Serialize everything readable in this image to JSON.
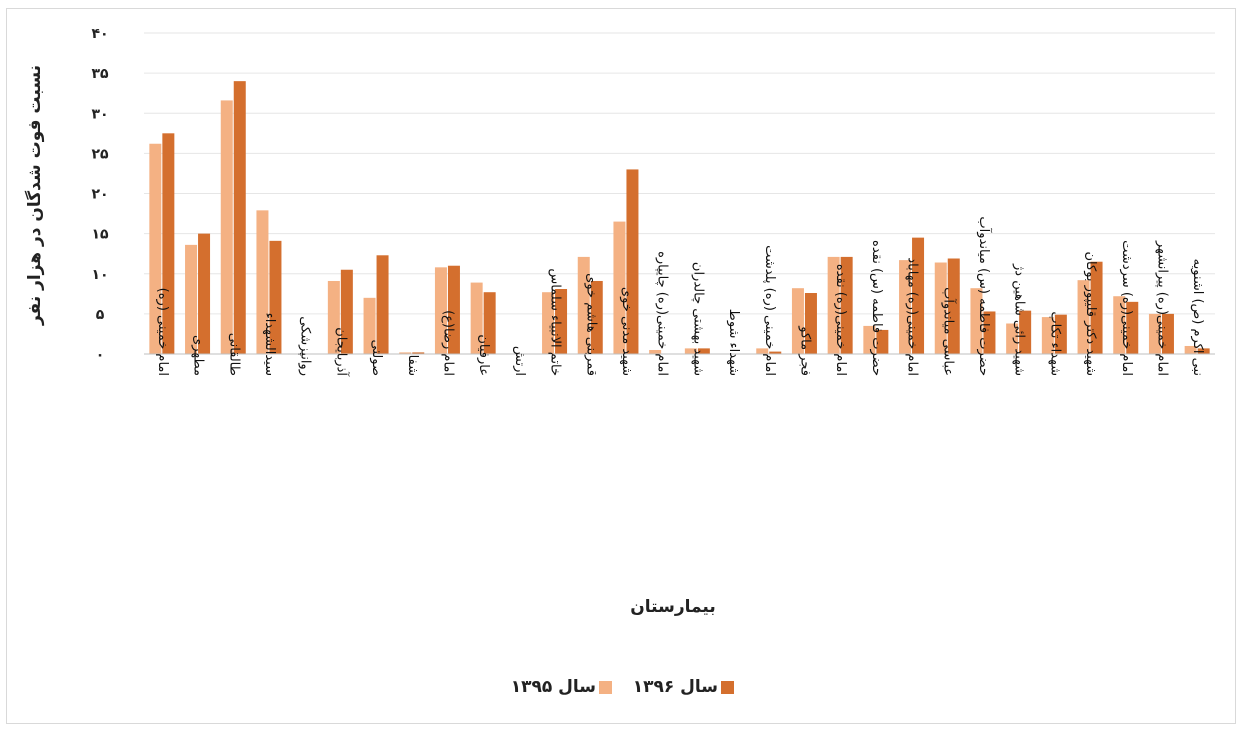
{
  "chart_data": {
    "type": "bar",
    "title": "",
    "xlabel": "بیمارستان",
    "ylabel": "نسبت فوت شدگان در هزار نفر",
    "ylim": [
      0,
      40
    ],
    "yticks": [
      0,
      5,
      10,
      15,
      20,
      25,
      30,
      35,
      40
    ],
    "ytick_labels": [
      "۰",
      "۵",
      "۱۰",
      "۱۵",
      "۲۰",
      "۲۵",
      "۳۰",
      "۳۵",
      "۴۰"
    ],
    "grid": true,
    "legend_position": "bottom",
    "categories": [
      "امام خمینی (ره)",
      "مطهری",
      "طالقانی",
      "سیدالشهداء",
      "روانپزشکی",
      "آذربایجان",
      "صولتی",
      "شفا",
      "امام رضا(ع)",
      "عارفیان",
      "ارتش",
      "خاتم الانبیاء سلماس",
      "قمربنی هاشم خوی",
      "شهید مدنی خوی",
      "امام خمینی(ره) چایپاره",
      "شهید بهشتی چالدران",
      "شهداء شوط",
      "امام خمینی (ره) پلدشت",
      "فجر ماکو",
      "امام خمینی(ره) نقده",
      "حضرت فاطمه (س) نقده",
      "امام خمینی(ره) مهاباد",
      "عباسی میاندوآب",
      "حضرت فاطمه (س) میاندوآب",
      "شهید رائی شاهین دژ",
      "شهداء تکاب",
      "شهید دکتر قلیپور بوکان",
      "امام خمینی(ره) سردشت",
      "امام خمینی(ره) پیرانشهر",
      "نبی اکرم (ص) اشنویه"
    ],
    "series": [
      {
        "name": "سال ۱۳۹۵",
        "color": "#F4B183",
        "values": [
          26.2,
          13.6,
          31.6,
          17.9,
          0,
          9.1,
          7.0,
          0.2,
          10.8,
          8.9,
          0,
          7.7,
          12.1,
          16.5,
          0.5,
          0.7,
          0,
          0.7,
          8.2,
          12.1,
          3.5,
          11.7,
          11.4,
          8.2,
          3.8,
          4.6,
          9.2,
          7.2,
          5.0,
          1.0
        ]
      },
      {
        "name": "سال ۱۳۹۶",
        "color": "#D46F2E",
        "values": [
          27.5,
          15.0,
          34.0,
          14.1,
          0,
          10.5,
          12.3,
          0.2,
          11.0,
          7.7,
          0,
          8.1,
          9.1,
          23.0,
          0,
          0.7,
          0,
          0.3,
          7.6,
          12.1,
          3.0,
          14.5,
          11.9,
          5.3,
          5.4,
          4.9,
          11.5,
          6.5,
          5.0,
          0.7
        ]
      }
    ]
  }
}
